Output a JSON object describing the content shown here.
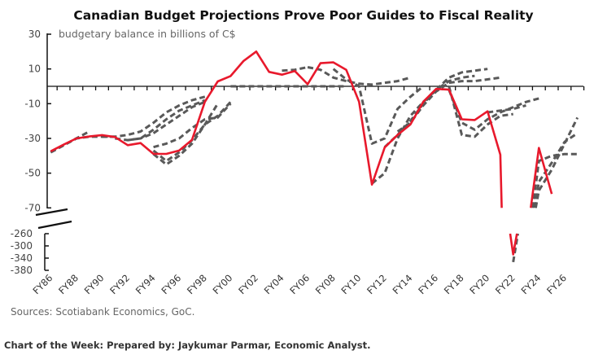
{
  "title": "Canadian Budget Projections Prove Poor Guides to Fiscal Reality",
  "sources": "Sources: Scotiabank Economics, GoC.",
  "footer": "Chart of the Week: Prepared by: Jaykumar Parmar, Economic Analyst.",
  "chart_data": {
    "type": "line",
    "title": "Canadian Budget Projections Prove Poor Guides to Fiscal Reality",
    "ylabel": "budgetary balance in billions of C$",
    "xlabel": "",
    "x_tick_labels": [
      "FY86",
      "FY88",
      "FY90",
      "FY92",
      "FY94",
      "FY96",
      "FY98",
      "FY00",
      "FY02",
      "FY04",
      "FY06",
      "FY08",
      "FY10",
      "FY12",
      "FY14",
      "FY16",
      "FY18",
      "FY20",
      "FY22",
      "FY24",
      "FY26"
    ],
    "y_ticks_upper": [
      30,
      10,
      -10,
      -30,
      -50,
      -70
    ],
    "y_ticks_lower": [
      -260,
      -300,
      -340,
      -380
    ],
    "ylim_upper": [
      -70,
      30
    ],
    "ylim_lower": [
      -380,
      -260
    ],
    "axis_break": true,
    "grid": false,
    "legend": "none",
    "colors": {
      "actual": "#e8192c",
      "projection": "#595959"
    },
    "actual": {
      "x_start": "FY86",
      "values": [
        -37.4,
        -33.6,
        -30,
        -28.9,
        -28.1,
        -29.2,
        -33.9,
        -32.7,
        -38.9,
        -38.9,
        -37,
        -30.8,
        -8.9,
        2.8,
        5.9,
        14.5,
        20,
        8.3,
        6.7,
        8.8,
        1.2,
        13.3,
        13.8,
        9.5,
        -8.9,
        -56.6,
        -35.2,
        -28,
        -22,
        -8.9,
        -1.5,
        -1.9,
        -19,
        -19.4,
        -14.4,
        -39.4,
        -328,
        -90,
        -35.5,
        -62
      ]
    },
    "projections": [
      {
        "x_start": "FY86",
        "values": [
          -38,
          -34,
          -30,
          -26
        ]
      },
      {
        "x_start": "FY86",
        "values": [
          -38,
          -34,
          -30,
          -29,
          -29,
          -29
        ]
      },
      {
        "x_start": "FY90",
        "values": [
          -29,
          -29,
          -28,
          -26,
          -21,
          -15,
          -11,
          -8,
          -6
        ]
      },
      {
        "x_start": "FY91",
        "values": [
          -30,
          -31,
          -30,
          -25,
          -19,
          -14,
          -11,
          -8
        ]
      },
      {
        "x_start": "FY92",
        "values": [
          -31,
          -30,
          -27,
          -22,
          -17,
          -12,
          -9
        ]
      },
      {
        "x_start": "FY94",
        "values": [
          -35,
          -33,
          -30,
          -24,
          -19,
          -18,
          -10
        ]
      },
      {
        "x_start": "FY94",
        "values": [
          -39,
          -45,
          -40,
          -33,
          -22,
          -10
        ]
      },
      {
        "x_start": "FY94",
        "values": [
          -37,
          -43,
          -38,
          -31,
          -22,
          -17,
          -9
        ]
      },
      {
        "x_start": "FY00",
        "values": [
          0,
          0,
          0,
          0,
          0,
          0,
          0,
          0,
          0,
          0
        ]
      },
      {
        "x_start": "FY04",
        "values": [
          9,
          9.5,
          11
        ]
      },
      {
        "x_start": "FY06",
        "values": [
          11,
          9.5,
          5,
          3,
          1.5,
          1,
          2,
          3,
          5
        ]
      },
      {
        "x_start": "FY08",
        "values": [
          10,
          4,
          0,
          -33,
          -30,
          -13,
          -6,
          0
        ]
      },
      {
        "x_start": "FY11",
        "values": [
          -56,
          -50,
          -30,
          -17,
          -9,
          -2,
          5,
          8,
          9,
          10
        ]
      },
      {
        "x_start": "FY12",
        "values": [
          -35,
          -28,
          -20,
          -10,
          -2,
          3,
          5,
          6
        ]
      },
      {
        "x_start": "FY13",
        "values": [
          -26,
          -21,
          -11,
          -3,
          2,
          3,
          3,
          4,
          5
        ]
      },
      {
        "x_start": "FY17",
        "values": [
          0,
          -28,
          -29,
          -22,
          -17,
          -16
        ]
      },
      {
        "x_start": "FY17",
        "values": [
          -2,
          -21,
          -25,
          -19,
          -15,
          -12,
          -9,
          -7
        ]
      },
      {
        "x_start": "FY20",
        "values": [
          -15,
          -14,
          -13,
          -11
        ]
      },
      {
        "x_start": "FY22",
        "values": [
          -353,
          -100,
          -43,
          -40,
          -39,
          -39
        ]
      },
      {
        "x_start": "FY23",
        "values": [
          -100,
          -60,
          -48,
          -33,
          -18
        ]
      },
      {
        "x_start": "FY23",
        "values": [
          -100,
          -55,
          -44,
          -32,
          -27
        ]
      }
    ]
  }
}
